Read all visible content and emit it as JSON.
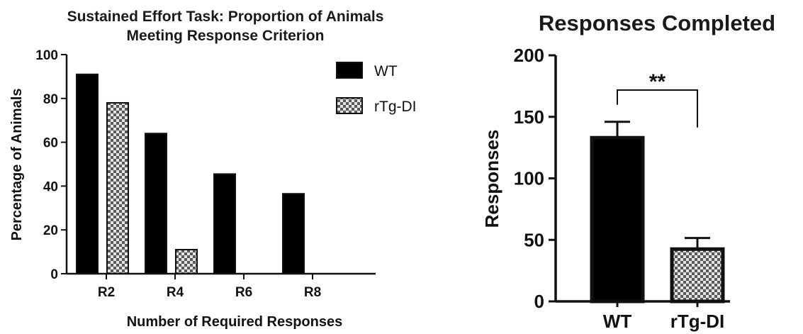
{
  "chart_data": [
    {
      "type": "bar",
      "title_lines": [
        "Sustained Effort Task: Proportion of Animals",
        "Meeting Response Criterion"
      ],
      "xlabel": "Number of Required Responses",
      "ylabel": "Percentage of Animals",
      "ylim": [
        0,
        100
      ],
      "yticks": [
        0,
        20,
        40,
        60,
        80,
        100
      ],
      "categories": [
        "R2",
        "R4",
        "R6",
        "R8"
      ],
      "series": [
        {
          "name": "WT",
          "values": [
            91,
            64,
            45.5,
            36.5
          ],
          "pattern": "solid",
          "color": "#000000"
        },
        {
          "name": "rTg-DI",
          "values": [
            78,
            11,
            0,
            0
          ],
          "pattern": "checker",
          "color": "#6e6e6e"
        }
      ],
      "legend_position": "top-right",
      "grid": false
    },
    {
      "type": "bar",
      "title": "Responses Completed",
      "xlabel": "",
      "ylabel": "Responses",
      "ylim": [
        0,
        200
      ],
      "yticks": [
        0,
        50,
        100,
        150,
        200
      ],
      "categories": [
        "WT",
        "rTg-DI"
      ],
      "values": [
        133,
        42.5
      ],
      "error": [
        13,
        9
      ],
      "patterns": [
        "solid",
        "checker"
      ],
      "significance": {
        "label": "**",
        "between": [
          "WT",
          "rTg-DI"
        ]
      },
      "grid": false
    }
  ]
}
